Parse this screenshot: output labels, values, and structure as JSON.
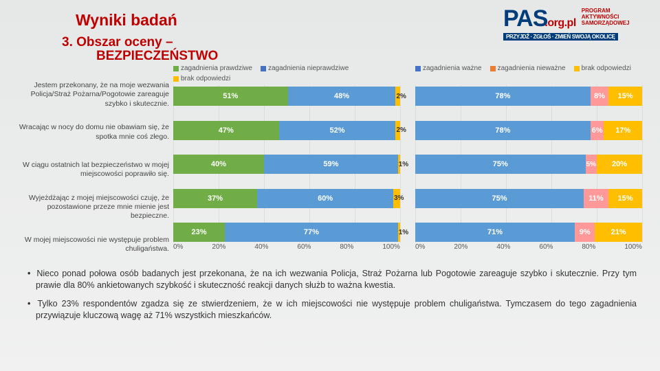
{
  "title": "Wyniki badań",
  "section_num": "3. Obszar oceny –",
  "section_name": "BEZPIECZEŃSTWO",
  "logo": {
    "name": "PAS",
    "url": ".org.pl",
    "tag1": "PROGRAM",
    "tag2": "AKTYWNOŚCI",
    "tag3": "SAMORZĄDOWEJ",
    "band": "PRZYJDŹ · ZGŁOŚ · ZMIEŃ SWOJĄ OKOLICĘ"
  },
  "legend_left": [
    {
      "label": "zagadnienia prawdziwe",
      "color": "#70ad47"
    },
    {
      "label": "zagadnienia nieprawdziwe",
      "color": "#4472c4"
    },
    {
      "label": "brak odpowiedzi",
      "color": "#ffbf00"
    }
  ],
  "legend_right": [
    {
      "label": "zagadnienia ważne",
      "color": "#4472c4"
    },
    {
      "label": "zagadnienia nieważne",
      "color": "#ed7d31"
    },
    {
      "label": "brak odpowiedzi",
      "color": "#ffbf00"
    }
  ],
  "questions": [
    "Jestem przekonany, że na moje wezwania Policja/Straż Pożarna/Pogotowie zareaguje szybko i skutecznie.",
    "Wracając w nocy do domu nie obawiam się, że spotka mnie coś złego.",
    "W ciągu ostatnich lat bezpieczeństwo w mojej miejscowości poprawiło się.",
    "Wyjeżdżając z mojej miejscowości czuję, że pozostawione przeze mnie mienie jest bezpieczne.",
    "W mojej miejscowości nie występuje problem chuligaństwa."
  ],
  "left_chart": {
    "colors": [
      "#70ad47",
      "#5b9bd5",
      "#ffbf00"
    ],
    "rows": [
      [
        {
          "v": 51,
          "l": "51%"
        },
        {
          "v": 48,
          "l": "48%"
        },
        {
          "v": 2,
          "l": "2%"
        }
      ],
      [
        {
          "v": 47,
          "l": "47%"
        },
        {
          "v": 52,
          "l": "52%"
        },
        {
          "v": 2,
          "l": "2%"
        }
      ],
      [
        {
          "v": 40,
          "l": "40%"
        },
        {
          "v": 59,
          "l": "59%"
        },
        {
          "v": 1,
          "l": "1%"
        }
      ],
      [
        {
          "v": 37,
          "l": "37%"
        },
        {
          "v": 60,
          "l": "60%"
        },
        {
          "v": 3,
          "l": "3%"
        }
      ],
      [
        {
          "v": 23,
          "l": "23%"
        },
        {
          "v": 77,
          "l": "77%"
        },
        {
          "v": 1,
          "l": "1%"
        }
      ]
    ],
    "ticks": [
      "0%",
      "20%",
      "40%",
      "60%",
      "80%",
      "100%"
    ]
  },
  "right_chart": {
    "colors": [
      "#5b9bd5",
      "#ff9999",
      "#ffbf00"
    ],
    "rows": [
      [
        {
          "v": 78,
          "l": "78%"
        },
        {
          "v": 8,
          "l": "8%"
        },
        {
          "v": 15,
          "l": "15%"
        }
      ],
      [
        {
          "v": 78,
          "l": "78%"
        },
        {
          "v": 6,
          "l": "6%"
        },
        {
          "v": 17,
          "l": "17%"
        }
      ],
      [
        {
          "v": 75,
          "l": "75%"
        },
        {
          "v": 5,
          "l": "5%"
        },
        {
          "v": 20,
          "l": "20%"
        }
      ],
      [
        {
          "v": 75,
          "l": "75%"
        },
        {
          "v": 11,
          "l": "11%"
        },
        {
          "v": 15,
          "l": "15%"
        }
      ],
      [
        {
          "v": 71,
          "l": "71%"
        },
        {
          "v": 9,
          "l": "9%"
        },
        {
          "v": 21,
          "l": "21%"
        }
      ]
    ],
    "ticks": [
      "0%",
      "20%",
      "40%",
      "60%",
      "80%",
      "100%"
    ]
  },
  "bullets": [
    "Nieco ponad połowa osób badanych jest przekonana, że na ich wezwania Policja, Straż Pożarna lub Pogotowie zareaguje szybko i skutecznie. Przy tym prawie dla 80% ankietowanych szybkość i skuteczność reakcji danych służb to ważna kwestia.",
    "Tylko 23% respondentów zgadza się ze stwierdzeniem, że w ich miejscowości nie występuje problem chuligaństwa. Tymczasem do tego zagadnienia przywiązuje kluczową wagę aż 71% wszystkich mieszkańców."
  ]
}
